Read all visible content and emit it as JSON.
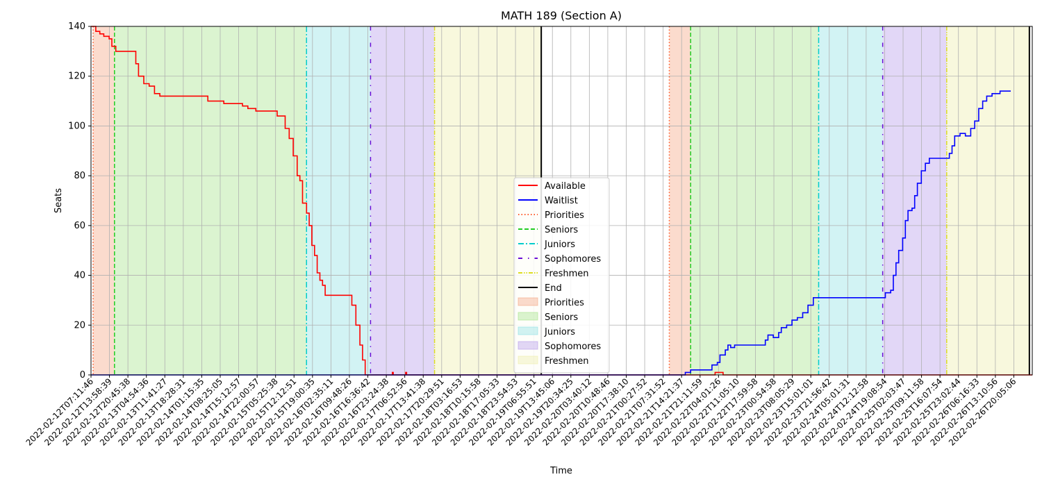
{
  "chart_data": {
    "type": "line",
    "title": "MATH 189 (Section A)",
    "xlabel": "Time",
    "ylabel": "Seats",
    "ylim": [
      0,
      140
    ],
    "yticks": [
      0,
      20,
      40,
      60,
      80,
      100,
      120,
      140
    ],
    "grid": true,
    "legend_position": "center-bottom",
    "x_start": "2022-02-12T07:11:46",
    "x_end": "2022-02-27T00:05:06",
    "x_tick_labels": [
      "2022-02-12T07:11:46",
      "2022-02-12T13:58:39",
      "2022-02-12T20:45:38",
      "2022-02-13T04:54:36",
      "2022-02-13T11:41:27",
      "2022-02-13T18:28:31",
      "2022-02-14T01:15:35",
      "2022-02-14T08:25:05",
      "2022-02-14T15:12:57",
      "2022-02-14T22:00:57",
      "2022-02-15T05:25:38",
      "2022-02-15T12:12:51",
      "2022-02-15T19:00:35",
      "2022-02-16T02:35:11",
      "2022-02-16T09:48:26",
      "2022-02-16T16:36:42",
      "2022-02-16T23:24:38",
      "2022-02-17T06:52:56",
      "2022-02-17T13:41:38",
      "2022-02-17T20:29:51",
      "2022-02-18T03:16:53",
      "2022-02-18T10:15:58",
      "2022-02-18T17:05:33",
      "2022-02-18T23:54:53",
      "2022-02-19T06:55:51",
      "2022-02-19T13:45:06",
      "2022-02-19T20:34:25",
      "2022-02-20T03:40:12",
      "2022-02-20T10:48:46",
      "2022-02-20T17:38:10",
      "2022-02-21T00:27:52",
      "2022-02-21T07:31:52",
      "2022-02-21T14:21:37",
      "2022-02-21T21:11:59",
      "2022-02-22T04:01:26",
      "2022-02-22T11:05:10",
      "2022-02-22T17:59:58",
      "2022-02-23T00:54:58",
      "2022-02-23T08:05:29",
      "2022-02-23T15:01:01",
      "2022-02-23T21:56:42",
      "2022-02-24T05:01:31",
      "2022-02-24T12:12:58",
      "2022-02-24T19:08:54",
      "2022-02-25T02:03:47",
      "2022-02-25T09:11:58",
      "2022-02-25T16:07:54",
      "2022-02-25T23:02:44",
      "2022-02-26T06:16:33",
      "2022-02-26T13:10:56",
      "2022-02-26T20:05:06"
    ],
    "bands": [
      {
        "name": "Priorities",
        "start": "2022-02-12T08:00:00",
        "end": "2022-02-12T16:00:00",
        "color": "#f4a582"
      },
      {
        "name": "Seniors",
        "start": "2022-02-12T16:00:00",
        "end": "2022-02-15T16:00:00",
        "color": "#a6e38a"
      },
      {
        "name": "Juniors",
        "start": "2022-02-15T16:00:00",
        "end": "2022-02-16T16:00:00",
        "color": "#8ee0e4"
      },
      {
        "name": "Sophomores",
        "start": "2022-02-16T16:00:00",
        "end": "2022-02-17T16:00:00",
        "color": "#b69bea"
      },
      {
        "name": "Freshmen",
        "start": "2022-02-17T16:00:00",
        "end": "2022-02-19T08:00:00",
        "color": "#eeeeaa"
      },
      {
        "name": "Priorities",
        "start": "2022-02-21T08:00:00",
        "end": "2022-02-21T16:00:00",
        "color": "#f4a582"
      },
      {
        "name": "Seniors",
        "start": "2022-02-21T16:00:00",
        "end": "2022-02-23T16:00:00",
        "color": "#a6e38a"
      },
      {
        "name": "Juniors",
        "start": "2022-02-23T16:00:00",
        "end": "2022-02-24T16:00:00",
        "color": "#8ee0e4"
      },
      {
        "name": "Sophomores",
        "start": "2022-02-24T16:00:00",
        "end": "2022-02-25T16:00:00",
        "color": "#b69bea"
      },
      {
        "name": "Freshmen",
        "start": "2022-02-25T16:00:00",
        "end": "2022-02-26T23:00:00",
        "color": "#eeeeaa"
      }
    ],
    "vlines": [
      {
        "name": "Priorities",
        "time": "2022-02-12T08:00:00",
        "color": "#ff5a2a",
        "dash": "1.5,3"
      },
      {
        "name": "Seniors",
        "time": "2022-02-12T16:00:00",
        "color": "#22cc22",
        "dash": "6,3"
      },
      {
        "name": "Juniors",
        "time": "2022-02-15T16:00:00",
        "color": "#00cccc",
        "dash": "8,3,2,3"
      },
      {
        "name": "Sophomores",
        "time": "2022-02-16T16:00:00",
        "color": "#6a0dd6",
        "dash": "6,8,1.5,8"
      },
      {
        "name": "Freshmen",
        "time": "2022-02-17T16:00:00",
        "color": "#dddd22",
        "dash": "6,2,1.5,2,1.5,2"
      },
      {
        "name": "End",
        "time": "2022-02-19T08:00:00",
        "color": "#000000",
        "dash": ""
      },
      {
        "name": "Priorities",
        "time": "2022-02-21T08:00:00",
        "color": "#ff5a2a",
        "dash": "1.5,3"
      },
      {
        "name": "Seniors",
        "time": "2022-02-21T16:00:00",
        "color": "#22cc22",
        "dash": "6,3"
      },
      {
        "name": "Juniors",
        "time": "2022-02-23T16:00:00",
        "color": "#00cccc",
        "dash": "8,3,2,3"
      },
      {
        "name": "Sophomores",
        "time": "2022-02-24T16:00:00",
        "color": "#6a0dd6",
        "dash": "6,8,1.5,8"
      },
      {
        "name": "Freshmen",
        "time": "2022-02-25T16:00:00",
        "color": "#dddd22",
        "dash": "6,2,1.5,2,1.5,2"
      },
      {
        "name": "End",
        "time": "2022-02-26T23:00:00",
        "color": "#000000",
        "dash": ""
      }
    ],
    "series": [
      {
        "name": "Available",
        "color": "#ff0000",
        "points": [
          [
            "2022-02-12T07:11:46",
            140
          ],
          [
            "2022-02-12T09:00:00",
            138
          ],
          [
            "2022-02-12T10:30:00",
            137
          ],
          [
            "2022-02-12T12:00:00",
            136
          ],
          [
            "2022-02-12T14:00:00",
            135
          ],
          [
            "2022-02-12T15:00:00",
            132
          ],
          [
            "2022-02-12T16:30:00",
            130
          ],
          [
            "2022-02-12T22:00:00",
            130
          ],
          [
            "2022-02-13T00:00:00",
            125
          ],
          [
            "2022-02-13T01:00:00",
            120
          ],
          [
            "2022-02-13T03:00:00",
            117
          ],
          [
            "2022-02-13T05:00:00",
            116
          ],
          [
            "2022-02-13T07:00:00",
            113
          ],
          [
            "2022-02-13T09:00:00",
            112
          ],
          [
            "2022-02-13T15:00:00",
            112
          ],
          [
            "2022-02-14T01:00:00",
            112
          ],
          [
            "2022-02-14T03:00:00",
            110
          ],
          [
            "2022-02-14T08:00:00",
            110
          ],
          [
            "2022-02-14T09:00:00",
            109
          ],
          [
            "2022-02-14T14:00:00",
            109
          ],
          [
            "2022-02-14T16:00:00",
            108
          ],
          [
            "2022-02-14T18:00:00",
            107
          ],
          [
            "2022-02-14T21:00:00",
            106
          ],
          [
            "2022-02-15T04:00:00",
            106
          ],
          [
            "2022-02-15T05:00:00",
            104
          ],
          [
            "2022-02-15T06:30:00",
            104
          ],
          [
            "2022-02-15T08:00:00",
            99
          ],
          [
            "2022-02-15T09:30:00",
            95
          ],
          [
            "2022-02-15T11:00:00",
            88
          ],
          [
            "2022-02-15T12:30:00",
            80
          ],
          [
            "2022-02-15T13:30:00",
            78
          ],
          [
            "2022-02-15T14:30:00",
            69
          ],
          [
            "2022-02-15T16:00:00",
            65
          ],
          [
            "2022-02-15T17:00:00",
            60
          ],
          [
            "2022-02-15T18:00:00",
            52
          ],
          [
            "2022-02-15T19:00:00",
            48
          ],
          [
            "2022-02-15T20:00:00",
            41
          ],
          [
            "2022-02-15T21:00:00",
            38
          ],
          [
            "2022-02-15T22:00:00",
            36
          ],
          [
            "2022-02-15T23:00:00",
            32
          ],
          [
            "2022-02-16T08:00:00",
            32
          ],
          [
            "2022-02-16T09:00:00",
            28
          ],
          [
            "2022-02-16T10:30:00",
            20
          ],
          [
            "2022-02-16T12:00:00",
            12
          ],
          [
            "2022-02-16T13:00:00",
            6
          ],
          [
            "2022-02-16T14:00:00",
            0
          ],
          [
            "2022-02-17T00:00:00",
            0
          ],
          [
            "2022-02-17T00:10:00",
            1
          ],
          [
            "2022-02-17T00:30:00",
            0
          ],
          [
            "2022-02-17T05:00:00",
            0
          ],
          [
            "2022-02-17T05:10:00",
            1
          ],
          [
            "2022-02-17T05:30:00",
            0
          ],
          [
            "2022-02-21T18:30:00",
            0
          ],
          [
            "2022-02-22T01:00:00",
            0
          ],
          [
            "2022-02-22T01:10:00",
            1
          ],
          [
            "2022-02-22T04:00:00",
            1
          ],
          [
            "2022-02-22T04:10:00",
            0
          ],
          [
            "2022-02-27T00:05:06",
            0
          ]
        ]
      },
      {
        "name": "Waitlist",
        "color": "#0000ff",
        "points": [
          [
            "2022-02-12T07:11:46",
            0
          ],
          [
            "2022-02-21T12:00:00",
            0
          ],
          [
            "2022-02-21T14:00:00",
            1
          ],
          [
            "2022-02-21T16:00:00",
            2
          ],
          [
            "2022-02-21T22:00:00",
            2
          ],
          [
            "2022-02-22T00:00:00",
            4
          ],
          [
            "2022-02-22T02:00:00",
            5
          ],
          [
            "2022-02-22T03:00:00",
            8
          ],
          [
            "2022-02-22T05:00:00",
            10
          ],
          [
            "2022-02-22T06:00:00",
            12
          ],
          [
            "2022-02-22T07:00:00",
            11
          ],
          [
            "2022-02-22T08:30:00",
            12
          ],
          [
            "2022-02-22T19:00:00",
            12
          ],
          [
            "2022-02-22T20:00:00",
            14
          ],
          [
            "2022-02-22T21:00:00",
            16
          ],
          [
            "2022-02-22T23:00:00",
            15
          ],
          [
            "2022-02-23T01:00:00",
            17
          ],
          [
            "2022-02-23T02:00:00",
            19
          ],
          [
            "2022-02-23T04:00:00",
            20
          ],
          [
            "2022-02-23T06:00:00",
            22
          ],
          [
            "2022-02-23T08:00:00",
            23
          ],
          [
            "2022-02-23T10:00:00",
            25
          ],
          [
            "2022-02-23T12:00:00",
            28
          ],
          [
            "2022-02-23T14:00:00",
            31
          ],
          [
            "2022-02-24T16:00:00",
            31
          ],
          [
            "2022-02-24T17:00:00",
            33
          ],
          [
            "2022-02-24T19:00:00",
            34
          ],
          [
            "2022-02-24T20:00:00",
            40
          ],
          [
            "2022-02-24T21:00:00",
            45
          ],
          [
            "2022-02-24T22:00:00",
            50
          ],
          [
            "2022-02-24T23:30:00",
            55
          ],
          [
            "2022-02-25T00:30:00",
            62
          ],
          [
            "2022-02-25T01:30:00",
            66
          ],
          [
            "2022-02-25T03:00:00",
            67
          ],
          [
            "2022-02-25T04:00:00",
            72
          ],
          [
            "2022-02-25T05:00:00",
            77
          ],
          [
            "2022-02-25T06:30:00",
            82
          ],
          [
            "2022-02-25T08:00:00",
            85
          ],
          [
            "2022-02-25T09:30:00",
            87
          ],
          [
            "2022-02-25T16:00:00",
            87
          ],
          [
            "2022-02-25T17:00:00",
            89
          ],
          [
            "2022-02-25T18:00:00",
            92
          ],
          [
            "2022-02-25T19:00:00",
            96
          ],
          [
            "2022-02-25T21:00:00",
            97
          ],
          [
            "2022-02-25T23:00:00",
            96
          ],
          [
            "2022-02-26T01:00:00",
            99
          ],
          [
            "2022-02-26T02:30:00",
            102
          ],
          [
            "2022-02-26T04:00:00",
            107
          ],
          [
            "2022-02-26T05:30:00",
            110
          ],
          [
            "2022-02-26T07:00:00",
            112
          ],
          [
            "2022-02-26T09:00:00",
            113
          ],
          [
            "2022-02-26T12:00:00",
            114
          ],
          [
            "2022-02-26T16:00:00",
            114
          ]
        ]
      }
    ],
    "legend": [
      {
        "label": "Available",
        "kind": "line",
        "color": "#ff0000",
        "dash": ""
      },
      {
        "label": "Waitlist",
        "kind": "line",
        "color": "#0000ff",
        "dash": ""
      },
      {
        "label": "Priorities",
        "kind": "line",
        "color": "#ff5a2a",
        "dash": "1.5,3"
      },
      {
        "label": "Seniors",
        "kind": "line",
        "color": "#22cc22",
        "dash": "6,3"
      },
      {
        "label": "Juniors",
        "kind": "line",
        "color": "#00cccc",
        "dash": "8,3,2,3"
      },
      {
        "label": "Sophomores",
        "kind": "line",
        "color": "#6a0dd6",
        "dash": "6,8,1.5,8"
      },
      {
        "label": "Freshmen",
        "kind": "line",
        "color": "#dddd22",
        "dash": "6,2,1.5,2,1.5,2"
      },
      {
        "label": "End",
        "kind": "line",
        "color": "#000000",
        "dash": ""
      },
      {
        "label": "Priorities",
        "kind": "patch",
        "color": "#f4a582"
      },
      {
        "label": "Seniors",
        "kind": "patch",
        "color": "#a6e38a"
      },
      {
        "label": "Juniors",
        "kind": "patch",
        "color": "#8ee0e4"
      },
      {
        "label": "Sophomores",
        "kind": "patch",
        "color": "#b69bea"
      },
      {
        "label": "Freshmen",
        "kind": "patch",
        "color": "#eeeeaa"
      }
    ]
  }
}
